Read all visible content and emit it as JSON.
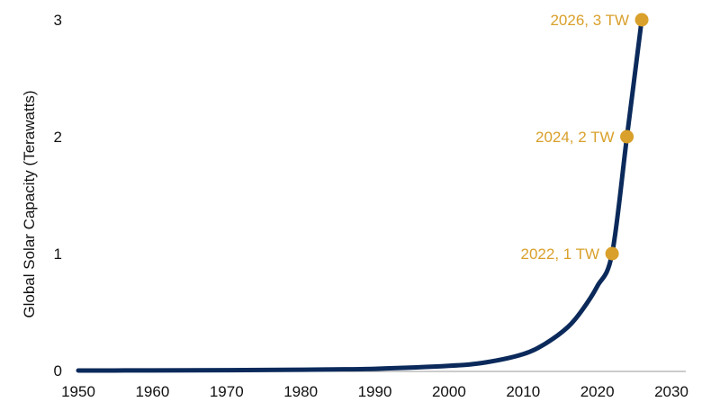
{
  "chart_data": {
    "type": "line",
    "title": "",
    "xlabel": "",
    "ylabel": "Global Solar Capacity (Terawatts)",
    "xlim": [
      1950,
      2030
    ],
    "ylim": [
      0,
      3
    ],
    "x_ticks": [
      "1950",
      "1960",
      "1970",
      "1980",
      "1990",
      "2000",
      "2010",
      "2020",
      "2030"
    ],
    "y_ticks": [
      "0",
      "1",
      "2",
      "3"
    ],
    "grid": false,
    "series": [
      {
        "x": [
          1950,
          1960,
          1970,
          1980,
          1990,
          2000,
          2005,
          2010,
          2013,
          2016,
          2018,
          2020,
          2022,
          2024,
          2026
        ],
        "values": [
          0,
          0.001,
          0.003,
          0.007,
          0.015,
          0.04,
          0.07,
          0.14,
          0.23,
          0.37,
          0.52,
          0.72,
          1.0,
          2.0,
          3.0
        ]
      }
    ],
    "annotations": [
      {
        "x": 2022,
        "y": 1,
        "label": "2022, 1 TW"
      },
      {
        "x": 2024,
        "y": 2,
        "label": "2024, 2 TW"
      },
      {
        "x": 2026,
        "y": 3,
        "label": "2026, 3 TW"
      }
    ],
    "colors": {
      "line": "#0b2a5b",
      "marker": "#d9a02b",
      "annotation_text": "#d9a02b",
      "axis": "#999999"
    }
  }
}
